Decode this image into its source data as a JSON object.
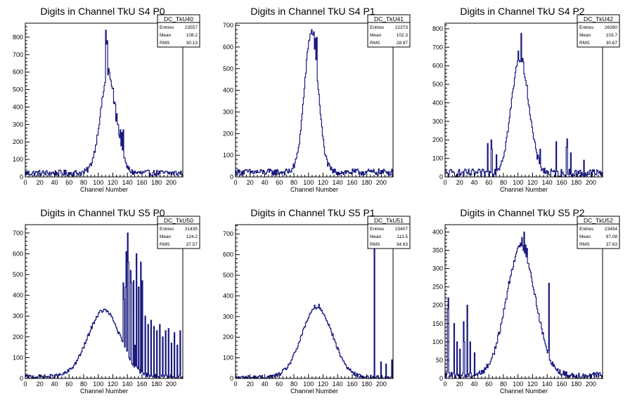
{
  "chart_data": [
    {
      "type": "bar",
      "title": "Digits in Channel TkU S4 P0",
      "xlabel": "Channel Number",
      "ylabel": "",
      "xlim": [
        0,
        216
      ],
      "ylim": [
        0,
        880
      ],
      "xticks": [
        0,
        20,
        40,
        60,
        80,
        100,
        120,
        140,
        160,
        180,
        200
      ],
      "yticks": [
        100,
        200,
        300,
        400,
        500,
        600,
        700,
        800
      ],
      "stats": {
        "name": "DC_TkU40",
        "rows": [
          [
            "Entries",
            "23557"
          ],
          [
            "Mean",
            "108.2"
          ],
          [
            "RMS",
            "30.13"
          ]
        ]
      },
      "histogram": {
        "mean": 114,
        "sigma": 11,
        "peak": 560,
        "baseline": 22,
        "noise": 35,
        "spikes": [
          [
            110,
            840
          ],
          [
            111,
            760
          ],
          [
            112,
            780
          ],
          [
            114,
            620
          ],
          [
            115,
            600
          ],
          [
            116,
            560
          ],
          [
            118,
            520
          ],
          [
            121,
            420
          ],
          [
            124,
            320
          ],
          [
            130,
            270
          ],
          [
            132,
            255
          ],
          [
            134,
            270
          ]
        ]
      }
    },
    {
      "type": "bar",
      "title": "Digits in Channel TkU S4 P1",
      "xlabel": "Channel Number",
      "ylabel": "",
      "xlim": [
        0,
        216
      ],
      "ylim": [
        0,
        710
      ],
      "xticks": [
        0,
        20,
        40,
        60,
        80,
        100,
        120,
        140,
        160,
        180,
        200
      ],
      "yticks": [
        100,
        200,
        300,
        400,
        500,
        600,
        700
      ],
      "stats": {
        "name": "DC_TkU41",
        "rows": [
          [
            "Entries",
            "22373"
          ],
          [
            "Mean",
            "102.3"
          ],
          [
            "RMS",
            "28.97"
          ]
        ]
      },
      "histogram": {
        "mean": 104,
        "sigma": 9.5,
        "peak": 640,
        "baseline": 22,
        "noise": 30,
        "spikes": [
          [
            102,
            660
          ],
          [
            104,
            680
          ],
          [
            106,
            655
          ],
          [
            107,
            670
          ],
          [
            109,
            640
          ],
          [
            111,
            645
          ]
        ]
      }
    },
    {
      "type": "bar",
      "title": "Digits in Channel TkU S4 P2",
      "xlabel": "Channel Number",
      "ylabel": "",
      "xlim": [
        0,
        216
      ],
      "ylim": [
        0,
        830
      ],
      "xticks": [
        0,
        20,
        40,
        60,
        80,
        100,
        120,
        140,
        160,
        180,
        200
      ],
      "yticks": [
        100,
        200,
        300,
        400,
        500,
        600,
        700,
        800
      ],
      "stats": {
        "name": "DC_TkU42",
        "rows": [
          [
            "Entries",
            "26390"
          ],
          [
            "Mean",
            "103.7"
          ],
          [
            "RMS",
            "30.67"
          ]
        ]
      },
      "histogram": {
        "mean": 103,
        "sigma": 12,
        "peak": 620,
        "baseline": 20,
        "noise": 45,
        "spikes": [
          [
            104,
            775
          ],
          [
            100,
            680
          ],
          [
            98,
            600
          ],
          [
            106,
            640
          ],
          [
            58,
            180
          ],
          [
            63,
            200
          ],
          [
            64,
            150
          ],
          [
            70,
            120
          ],
          [
            130,
            150
          ],
          [
            152,
            190
          ],
          [
            166,
            160
          ],
          [
            167,
            205
          ],
          [
            172,
            130
          ],
          [
            190,
            90
          ]
        ]
      }
    },
    {
      "type": "bar",
      "title": "Digits in Channel TkU S5 P0",
      "xlabel": "Channel Number",
      "ylabel": "",
      "xlim": [
        0,
        216
      ],
      "ylim": [
        0,
        740
      ],
      "xticks": [
        0,
        20,
        40,
        60,
        80,
        100,
        120,
        140,
        160,
        180,
        200
      ],
      "yticks": [
        100,
        200,
        300,
        400,
        500,
        600,
        700
      ],
      "stats": {
        "name": "DC_TkU50",
        "rows": [
          [
            "Entries",
            "31435"
          ],
          [
            "Mean",
            "124.2"
          ],
          [
            "RMS",
            "37.57"
          ]
        ]
      },
      "histogram": {
        "mean": 108,
        "sigma": 22,
        "peak": 320,
        "baseline": 8,
        "noise": 20,
        "spikes": [
          [
            134,
            460
          ],
          [
            135,
            380
          ],
          [
            137,
            440
          ],
          [
            138,
            610
          ],
          [
            140,
            700
          ],
          [
            141,
            560
          ],
          [
            144,
            520
          ],
          [
            145,
            460
          ],
          [
            148,
            470
          ],
          [
            150,
            160
          ],
          [
            152,
            600
          ],
          [
            155,
            440
          ],
          [
            158,
            560
          ],
          [
            160,
            470
          ],
          [
            164,
            300
          ],
          [
            168,
            260
          ],
          [
            172,
            280
          ],
          [
            176,
            250
          ],
          [
            180,
            230
          ],
          [
            184,
            260
          ],
          [
            188,
            200
          ],
          [
            192,
            230
          ],
          [
            196,
            240
          ],
          [
            200,
            170
          ],
          [
            204,
            220
          ],
          [
            208,
            160
          ],
          [
            212,
            230
          ]
        ]
      }
    },
    {
      "type": "bar",
      "title": "Digits in Channel TkU S5 P1",
      "xlabel": "Channel Number",
      "ylabel": "",
      "xlim": [
        0,
        216
      ],
      "ylim": [
        0,
        745
      ],
      "xticks": [
        0,
        20,
        40,
        60,
        80,
        100,
        120,
        140,
        160,
        180,
        200
      ],
      "yticks": [
        100,
        200,
        300,
        400,
        500,
        600,
        700
      ],
      "stats": {
        "name": "DC_TkU51",
        "rows": [
          [
            "Entries",
            "23407"
          ],
          [
            "Mean",
            "113.5"
          ],
          [
            "RMS",
            "34.93"
          ]
        ]
      },
      "histogram": {
        "mean": 112,
        "sigma": 21,
        "peak": 340,
        "baseline": 5,
        "noise": 20,
        "spikes": [
          [
            108,
            355
          ],
          [
            114,
            360
          ],
          [
            190,
            735
          ],
          [
            199,
            80
          ],
          [
            206,
            70
          ],
          [
            214,
            90
          ]
        ]
      }
    },
    {
      "type": "bar",
      "title": "Digits in Channel TkU S5 P2",
      "xlabel": "Channel Number",
      "ylabel": "",
      "xlim": [
        0,
        216
      ],
      "ylim": [
        0,
        420
      ],
      "xticks": [
        0,
        20,
        40,
        60,
        80,
        100,
        120,
        140,
        160,
        180,
        200
      ],
      "yticks": [
        50,
        100,
        150,
        200,
        250,
        300,
        350,
        400
      ],
      "stats": {
        "name": "DC_TkU52",
        "rows": [
          [
            "Entries",
            "23454"
          ],
          [
            "Mean",
            "97.08"
          ],
          [
            "RMS",
            "37.63"
          ]
        ]
      },
      "histogram": {
        "mean": 104,
        "sigma": 20,
        "peak": 350,
        "baseline": 8,
        "noise": 18,
        "spikes": [
          [
            3,
            190
          ],
          [
            4,
            220
          ],
          [
            12,
            150
          ],
          [
            16,
            100
          ],
          [
            20,
            80
          ],
          [
            25,
            155
          ],
          [
            26,
            100
          ],
          [
            30,
            200
          ],
          [
            34,
            100
          ],
          [
            40,
            70
          ],
          [
            103,
            370
          ],
          [
            105,
            385
          ],
          [
            108,
            400
          ],
          [
            110,
            365
          ],
          [
            112,
            355
          ],
          [
            142,
            260
          ]
        ]
      }
    }
  ]
}
